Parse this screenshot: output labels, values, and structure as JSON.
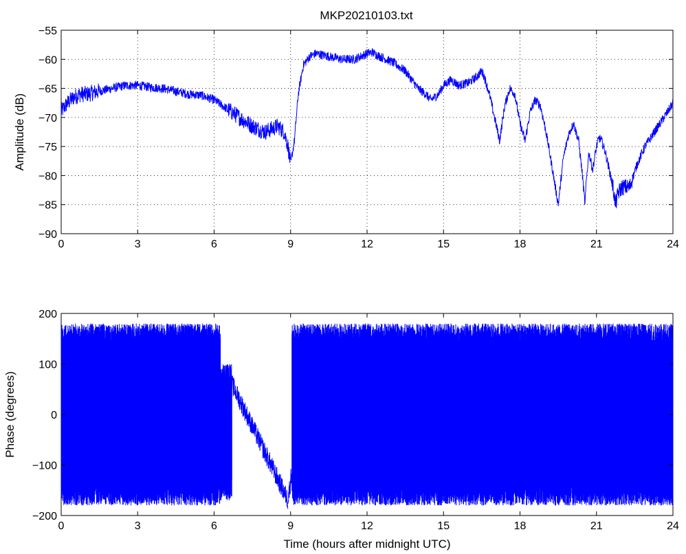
{
  "figure": {
    "title": "MKP20210103.txt"
  },
  "chart_data": [
    {
      "type": "line",
      "title": "MKP20210103.txt",
      "xlabel": "",
      "ylabel": "Amplitude (dB)",
      "xlim": [
        0,
        24
      ],
      "ylim": [
        -90,
        -55
      ],
      "xticks": [
        "0",
        "3",
        "6",
        "9",
        "12",
        "15",
        "18",
        "21",
        "24"
      ],
      "yticks": [
        "-90",
        "-85",
        "-80",
        "-75",
        "-70",
        "-65",
        "-60",
        "-55"
      ],
      "grid": true,
      "color": "#0000ff",
      "series": [
        {
          "x": [
            0,
            0.25,
            0.5,
            0.75,
            1,
            1.5,
            2,
            2.5,
            3,
            3.5,
            4,
            4.5,
            5,
            5.5,
            6,
            6.5,
            7,
            7.5,
            8,
            8.5,
            8.75,
            8.9,
            9,
            9.15,
            9.3,
            9.5,
            9.75,
            10,
            10.5,
            11,
            11.5,
            12,
            12.2,
            12.5,
            13,
            13.5,
            14,
            14.3,
            14.5,
            14.8,
            15,
            15.3,
            15.6,
            16,
            16.3,
            16.5,
            16.6,
            16.8,
            17,
            17.2,
            17.4,
            17.6,
            17.8,
            18,
            18.2,
            18.4,
            18.6,
            18.8,
            19,
            19.2,
            19.35,
            19.5,
            19.55,
            19.7,
            19.9,
            20.1,
            20.3,
            20.45,
            20.55,
            20.6,
            20.7,
            20.85,
            21,
            21.1,
            21.2,
            21.35,
            21.5,
            21.65,
            21.75,
            21.85,
            22,
            22.3,
            22.6,
            22.9,
            23.2,
            23.5,
            23.8,
            24
          ],
          "y": [
            -69,
            -67.5,
            -66.5,
            -66,
            -66,
            -65.5,
            -65,
            -64.5,
            -64.5,
            -64.8,
            -65,
            -65.5,
            -66,
            -66.2,
            -67,
            -68.5,
            -70,
            -71.5,
            -72.5,
            -71.5,
            -72.5,
            -75,
            -78,
            -74,
            -66,
            -61,
            -59.5,
            -59,
            -59.5,
            -60,
            -60,
            -59,
            -58.8,
            -59.5,
            -60.5,
            -62,
            -65,
            -66,
            -67,
            -66,
            -64.5,
            -63.5,
            -64.5,
            -64,
            -63,
            -62,
            -63,
            -66,
            -70,
            -74,
            -68,
            -65,
            -66,
            -71,
            -74,
            -69,
            -67,
            -68,
            -72,
            -77,
            -81,
            -85,
            -83,
            -77,
            -73,
            -71,
            -74,
            -80,
            -85,
            -81,
            -76,
            -79,
            -75,
            -73.5,
            -74,
            -76,
            -79,
            -82,
            -85,
            -83,
            -82,
            -82,
            -78,
            -75,
            -73,
            -71,
            -69,
            -67.5
          ]
        }
      ]
    },
    {
      "type": "line",
      "title": "",
      "xlabel": "Time (hours after midnight UTC)",
      "ylabel": "Phase (degrees)",
      "xlim": [
        0,
        24
      ],
      "ylim": [
        -200,
        200
      ],
      "xticks": [
        "0",
        "3",
        "6",
        "9",
        "12",
        "15",
        "18",
        "21",
        "24"
      ],
      "yticks": [
        "-200",
        "-100",
        "0",
        "100",
        "200"
      ],
      "grid": false,
      "color": "#0000ff",
      "series": [
        {
          "note_segments": [
            {
              "x": [
                0,
                6.25
              ],
              "y_range": [
                -180,
                180
              ],
              "style": "wrapping"
            },
            {
              "x": [
                6.25,
                6.7
              ],
              "y_range": [
                -170,
                100
              ],
              "style": "wrapping"
            },
            {
              "x": [
                6.7,
                8.9
              ],
              "y": [
                60,
                -170
              ],
              "style": "drift"
            },
            {
              "x": [
                8.9,
                9.05
              ],
              "y": [
                -170,
                -110
              ],
              "style": "drift"
            },
            {
              "x": [
                9.05,
                24
              ],
              "y_range": [
                -180,
                180
              ],
              "style": "wrapping"
            }
          ]
        }
      ]
    }
  ]
}
